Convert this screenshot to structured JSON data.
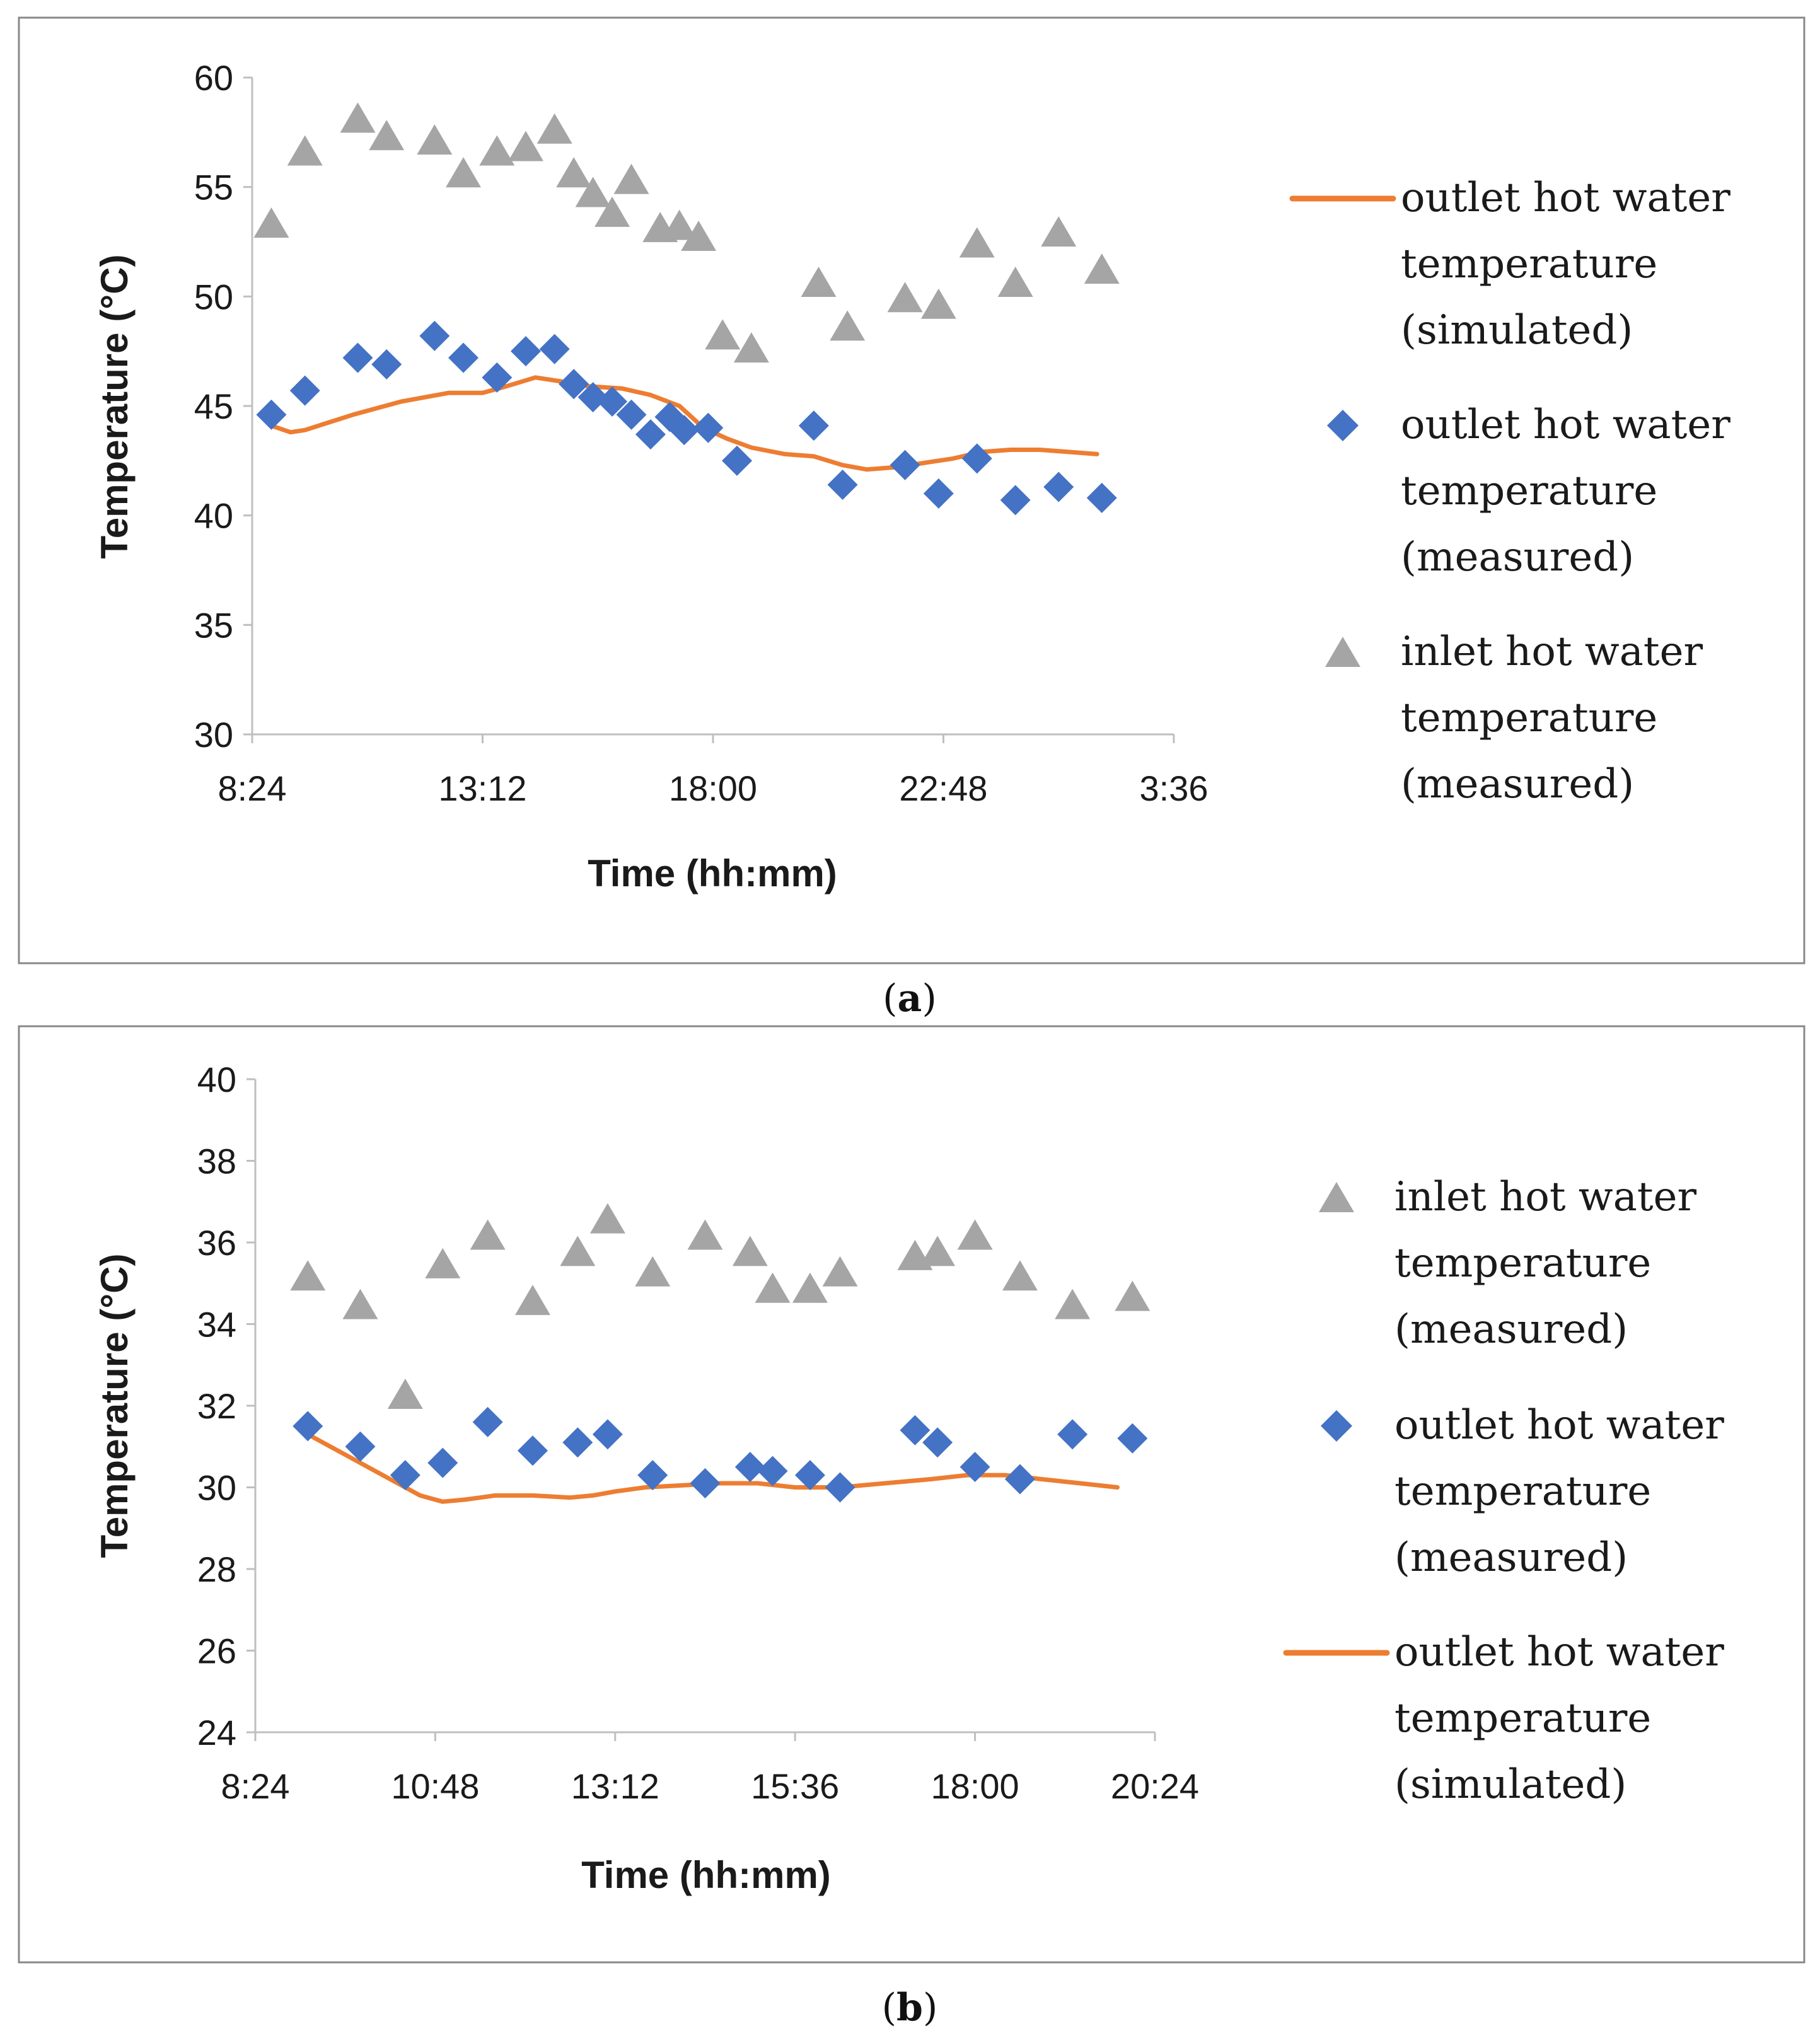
{
  "colors": {
    "simulated": "#ED7D31",
    "outlet_measured": "#4472C4",
    "inlet_measured": "#A5A5A5"
  },
  "chart_data": [
    {
      "type": "line+scatter",
      "panel": "a",
      "caption": {
        "open": "(",
        "letter": "a",
        "close": ")"
      },
      "xlabel": "Time (hh:mm)",
      "ylabel": "Temperature (°C)",
      "xlim_hours": [
        8.4,
        27.6
      ],
      "xticks": [
        {
          "v": 8.4,
          "label": "8:24"
        },
        {
          "v": 13.2,
          "label": "13:12"
        },
        {
          "v": 18.0,
          "label": "18:00"
        },
        {
          "v": 22.8,
          "label": "22:48"
        },
        {
          "v": 27.6,
          "label": "3:36"
        }
      ],
      "ylim": [
        30,
        60
      ],
      "yticks": [
        30,
        35,
        40,
        45,
        50,
        55,
        60
      ],
      "legend_placement": "right",
      "legend_order": [
        "sim",
        "out",
        "in"
      ],
      "series": {
        "sim": {
          "name": "outlet hot water temperature (simulated)",
          "lines": [
            "outlet hot water",
            "temperature",
            "(simulated)"
          ],
          "x": [
            8.8,
            9.2,
            9.5,
            10.5,
            11.5,
            12.5,
            13.2,
            13.7,
            14.3,
            14.9,
            15.4,
            16.1,
            16.7,
            17.3,
            17.8,
            18.3,
            18.8,
            19.5,
            20.1,
            20.7,
            21.2,
            21.8,
            22.4,
            23.0,
            23.6,
            24.2,
            24.8,
            25.4,
            26.0
          ],
          "y": [
            44.1,
            43.8,
            43.9,
            44.6,
            45.2,
            45.6,
            45.6,
            45.9,
            46.3,
            46.1,
            45.9,
            45.8,
            45.5,
            45.0,
            44.0,
            43.5,
            43.1,
            42.8,
            42.7,
            42.3,
            42.1,
            42.2,
            42.4,
            42.6,
            42.9,
            43.0,
            43.0,
            42.9,
            42.8
          ]
        },
        "out": {
          "name": "outlet hot water temperature (measured)",
          "lines": [
            "outlet hot water",
            "temperature",
            "(measured)"
          ],
          "x": [
            8.8,
            9.5,
            10.6,
            11.2,
            12.2,
            12.8,
            13.5,
            14.1,
            14.7,
            15.1,
            15.5,
            15.9,
            16.3,
            16.7,
            17.1,
            17.4,
            17.9,
            18.5,
            20.1,
            20.7,
            22.0,
            22.7,
            23.5,
            24.3,
            25.2,
            26.1
          ],
          "y": [
            44.6,
            45.7,
            47.2,
            46.9,
            48.2,
            47.2,
            46.3,
            47.5,
            47.6,
            46.0,
            45.4,
            45.2,
            44.6,
            43.7,
            44.5,
            43.9,
            44.0,
            42.5,
            44.1,
            41.4,
            42.3,
            41.0,
            42.6,
            40.7,
            41.3,
            40.8
          ]
        },
        "in": {
          "name": "inlet hot water temperature (measured)",
          "lines": [
            "inlet hot water",
            "temperature",
            "(measured)"
          ],
          "x": [
            8.8,
            9.5,
            10.6,
            11.2,
            12.2,
            12.8,
            13.5,
            14.1,
            14.7,
            15.1,
            15.5,
            15.9,
            16.3,
            16.9,
            17.3,
            17.7,
            18.2,
            18.8,
            20.2,
            20.8,
            22.0,
            22.7,
            23.5,
            24.3,
            25.2,
            26.1
          ],
          "y": [
            53.2,
            56.5,
            58.0,
            57.2,
            57.0,
            55.5,
            56.5,
            56.7,
            57.5,
            55.5,
            54.6,
            53.7,
            55.2,
            53.0,
            53.1,
            52.6,
            48.1,
            47.5,
            50.5,
            48.5,
            49.8,
            49.5,
            52.3,
            50.5,
            52.8,
            51.1
          ]
        }
      }
    },
    {
      "type": "line+scatter",
      "panel": "b",
      "caption": {
        "open": "(",
        "letter": "b",
        "close": ")"
      },
      "xlabel": "Time (hh:mm)",
      "ylabel": "Temperature (°C)",
      "xlim_hours": [
        8.4,
        20.4
      ],
      "xticks": [
        {
          "v": 8.4,
          "label": "8:24"
        },
        {
          "v": 10.8,
          "label": "10:48"
        },
        {
          "v": 13.2,
          "label": "13:12"
        },
        {
          "v": 15.6,
          "label": "15:36"
        },
        {
          "v": 18.0,
          "label": "18:00"
        },
        {
          "v": 20.4,
          "label": "20:24"
        }
      ],
      "ylim": [
        24,
        40
      ],
      "yticks": [
        24,
        26,
        28,
        30,
        32,
        34,
        36,
        38,
        40
      ],
      "legend_placement": "right",
      "legend_order": [
        "in",
        "out",
        "sim"
      ],
      "series": {
        "sim": {
          "name": "outlet hot water temperature (simulated)",
          "lines": [
            "outlet hot water",
            "temperature",
            "(simulated)"
          ],
          "x": [
            9.1,
            9.6,
            10.2,
            10.6,
            10.9,
            11.2,
            11.6,
            12.1,
            12.6,
            12.9,
            13.2,
            13.6,
            14.1,
            14.6,
            15.1,
            15.6,
            16.2,
            16.8,
            17.4,
            17.9,
            18.4,
            18.9,
            19.4,
            19.9
          ],
          "y": [
            31.3,
            30.8,
            30.2,
            29.8,
            29.65,
            29.7,
            29.8,
            29.8,
            29.75,
            29.8,
            29.9,
            30.0,
            30.05,
            30.1,
            30.1,
            30.0,
            30.0,
            30.1,
            30.2,
            30.3,
            30.3,
            30.2,
            30.1,
            30.0
          ]
        },
        "out": {
          "name": "outlet hot water temperature (measured)",
          "lines": [
            "outlet hot water",
            "temperature",
            "(measured)"
          ],
          "x": [
            9.1,
            9.8,
            10.4,
            10.9,
            11.5,
            12.1,
            12.7,
            13.1,
            13.7,
            14.4,
            15.0,
            15.3,
            15.8,
            16.2,
            17.2,
            17.5,
            18.0,
            18.6,
            19.3,
            20.1
          ],
          "y": [
            31.5,
            31.0,
            30.3,
            30.6,
            31.6,
            30.9,
            31.1,
            31.3,
            30.3,
            30.1,
            30.5,
            30.4,
            30.3,
            30.0,
            31.4,
            31.1,
            30.5,
            30.2,
            31.3,
            31.2
          ]
        },
        "in": {
          "name": "inlet hot water temperature (measured)",
          "lines": [
            "inlet hot water",
            "temperature",
            "(measured)"
          ],
          "x": [
            9.1,
            9.8,
            10.4,
            10.9,
            11.5,
            12.1,
            12.7,
            13.1,
            13.7,
            14.4,
            15.0,
            15.3,
            15.8,
            16.2,
            17.2,
            17.5,
            18.0,
            18.6,
            19.3,
            20.1
          ],
          "y": [
            35.1,
            34.4,
            32.2,
            35.4,
            36.1,
            34.5,
            35.7,
            36.5,
            35.2,
            36.1,
            35.7,
            34.8,
            34.8,
            35.2,
            35.6,
            35.7,
            36.1,
            35.1,
            34.4,
            34.6
          ]
        }
      }
    }
  ]
}
